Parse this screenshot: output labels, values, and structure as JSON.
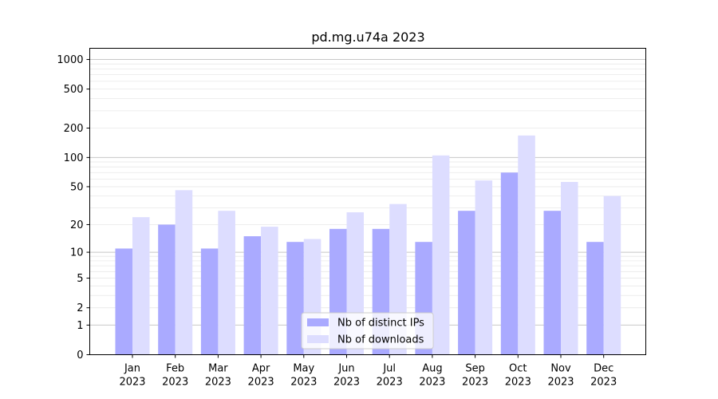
{
  "chart_data": {
    "type": "bar",
    "title": "pd.mg.u74a 2023",
    "xlabel": "",
    "ylabel": "",
    "categories": [
      [
        "Jan",
        "2023"
      ],
      [
        "Feb",
        "2023"
      ],
      [
        "Mar",
        "2023"
      ],
      [
        "Apr",
        "2023"
      ],
      [
        "May",
        "2023"
      ],
      [
        "Jun",
        "2023"
      ],
      [
        "Jul",
        "2023"
      ],
      [
        "Aug",
        "2023"
      ],
      [
        "Sep",
        "2023"
      ],
      [
        "Oct",
        "2023"
      ],
      [
        "Nov",
        "2023"
      ],
      [
        "Dec",
        "2023"
      ]
    ],
    "series": [
      {
        "name": "Nb of distinct IPs",
        "color": "#aaaaff",
        "values": [
          11,
          20,
          11,
          15,
          13,
          18,
          18,
          13,
          28,
          70,
          28,
          13
        ]
      },
      {
        "name": "Nb of downloads",
        "color": "#ddddff",
        "values": [
          24,
          46,
          28,
          19,
          14,
          27,
          33,
          105,
          58,
          168,
          56,
          40
        ]
      }
    ],
    "y_scale": "log1p",
    "ylim": [
      0,
      1300
    ],
    "y_ticks": [
      "0",
      "1",
      "2",
      "5",
      "10",
      "20",
      "50",
      "100",
      "200",
      "500",
      "1000"
    ],
    "grid": true,
    "legend_position": "lower-center"
  }
}
